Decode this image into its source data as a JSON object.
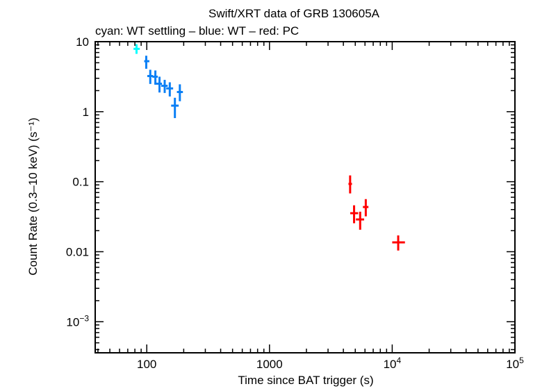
{
  "chart_data": {
    "type": "scatter",
    "title": "Swift/XRT data of GRB 130605A",
    "subtitle": "cyan: WT settling – blue: WT – red: PC",
    "xlabel": "Time since BAT trigger (s)",
    "ylabel": "Count Rate (0.3–10 keV) (s⁻¹)",
    "xscale": "log",
    "yscale": "log",
    "xlim": [
      38,
      100000
    ],
    "ylim": [
      0.00036,
      10
    ],
    "grid": false,
    "x_ticks": [
      {
        "v": 100,
        "label": "100"
      },
      {
        "v": 1000,
        "label": "1000"
      },
      {
        "v": 10000,
        "label": "10",
        "sup": "4"
      },
      {
        "v": 100000,
        "label": "10",
        "sup": "5"
      }
    ],
    "y_ticks": [
      {
        "v": 10,
        "label": "10"
      },
      {
        "v": 1,
        "label": "1"
      },
      {
        "v": 0.1,
        "label": "0.1"
      },
      {
        "v": 0.01,
        "label": "0.01"
      },
      {
        "v": 0.001,
        "label": "10",
        "sup": "−3"
      }
    ],
    "series": [
      {
        "name": "WT settling",
        "color": "#00ffff",
        "points": [
          {
            "x": 82.5,
            "xlo": 78,
            "xhi": 87.7,
            "y": 7.9,
            "ylo": 6.7,
            "yhi": 9.2
          }
        ]
      },
      {
        "name": "WT",
        "color": "#0a7ff5",
        "points": [
          {
            "x": 99,
            "xlo": 95.3,
            "xhi": 105,
            "y": 5.26,
            "ylo": 4.1,
            "yhi": 6.3
          },
          {
            "x": 106.8,
            "xlo": 101,
            "xhi": 112.5,
            "y": 3.23,
            "ylo": 2.49,
            "yhi": 3.97
          },
          {
            "x": 117.5,
            "xlo": 111,
            "xhi": 123,
            "y": 3.16,
            "ylo": 2.45,
            "yhi": 3.88
          },
          {
            "x": 127,
            "xlo": 115.5,
            "xhi": 133,
            "y": 2.51,
            "ylo": 1.88,
            "yhi": 3.16
          },
          {
            "x": 140,
            "xlo": 131,
            "xhi": 148,
            "y": 2.34,
            "ylo": 1.85,
            "yhi": 2.85
          },
          {
            "x": 154,
            "xlo": 144,
            "xhi": 164,
            "y": 2.15,
            "ylo": 1.65,
            "yhi": 2.63
          },
          {
            "x": 169.5,
            "xlo": 158,
            "xhi": 182,
            "y": 1.22,
            "ylo": 0.81,
            "yhi": 1.58
          },
          {
            "x": 186,
            "xlo": 176,
            "xhi": 197,
            "y": 1.91,
            "ylo": 1.41,
            "yhi": 2.46
          }
        ]
      },
      {
        "name": "PC",
        "color": "#ff0000",
        "points": [
          {
            "x": 4540,
            "xlo": 4400,
            "xhi": 4700,
            "y": 0.093,
            "ylo": 0.068,
            "yhi": 0.123
          },
          {
            "x": 4890,
            "xlo": 4550,
            "xhi": 5280,
            "y": 0.0355,
            "ylo": 0.0255,
            "yhi": 0.046
          },
          {
            "x": 5480,
            "xlo": 5060,
            "xhi": 5900,
            "y": 0.0289,
            "ylo": 0.0206,
            "yhi": 0.0373
          },
          {
            "x": 6090,
            "xlo": 5770,
            "xhi": 6400,
            "y": 0.0435,
            "ylo": 0.032,
            "yhi": 0.0564
          },
          {
            "x": 11190,
            "xlo": 10000,
            "xhi": 12700,
            "y": 0.0136,
            "ylo": 0.0104,
            "yhi": 0.0171
          }
        ]
      }
    ]
  }
}
